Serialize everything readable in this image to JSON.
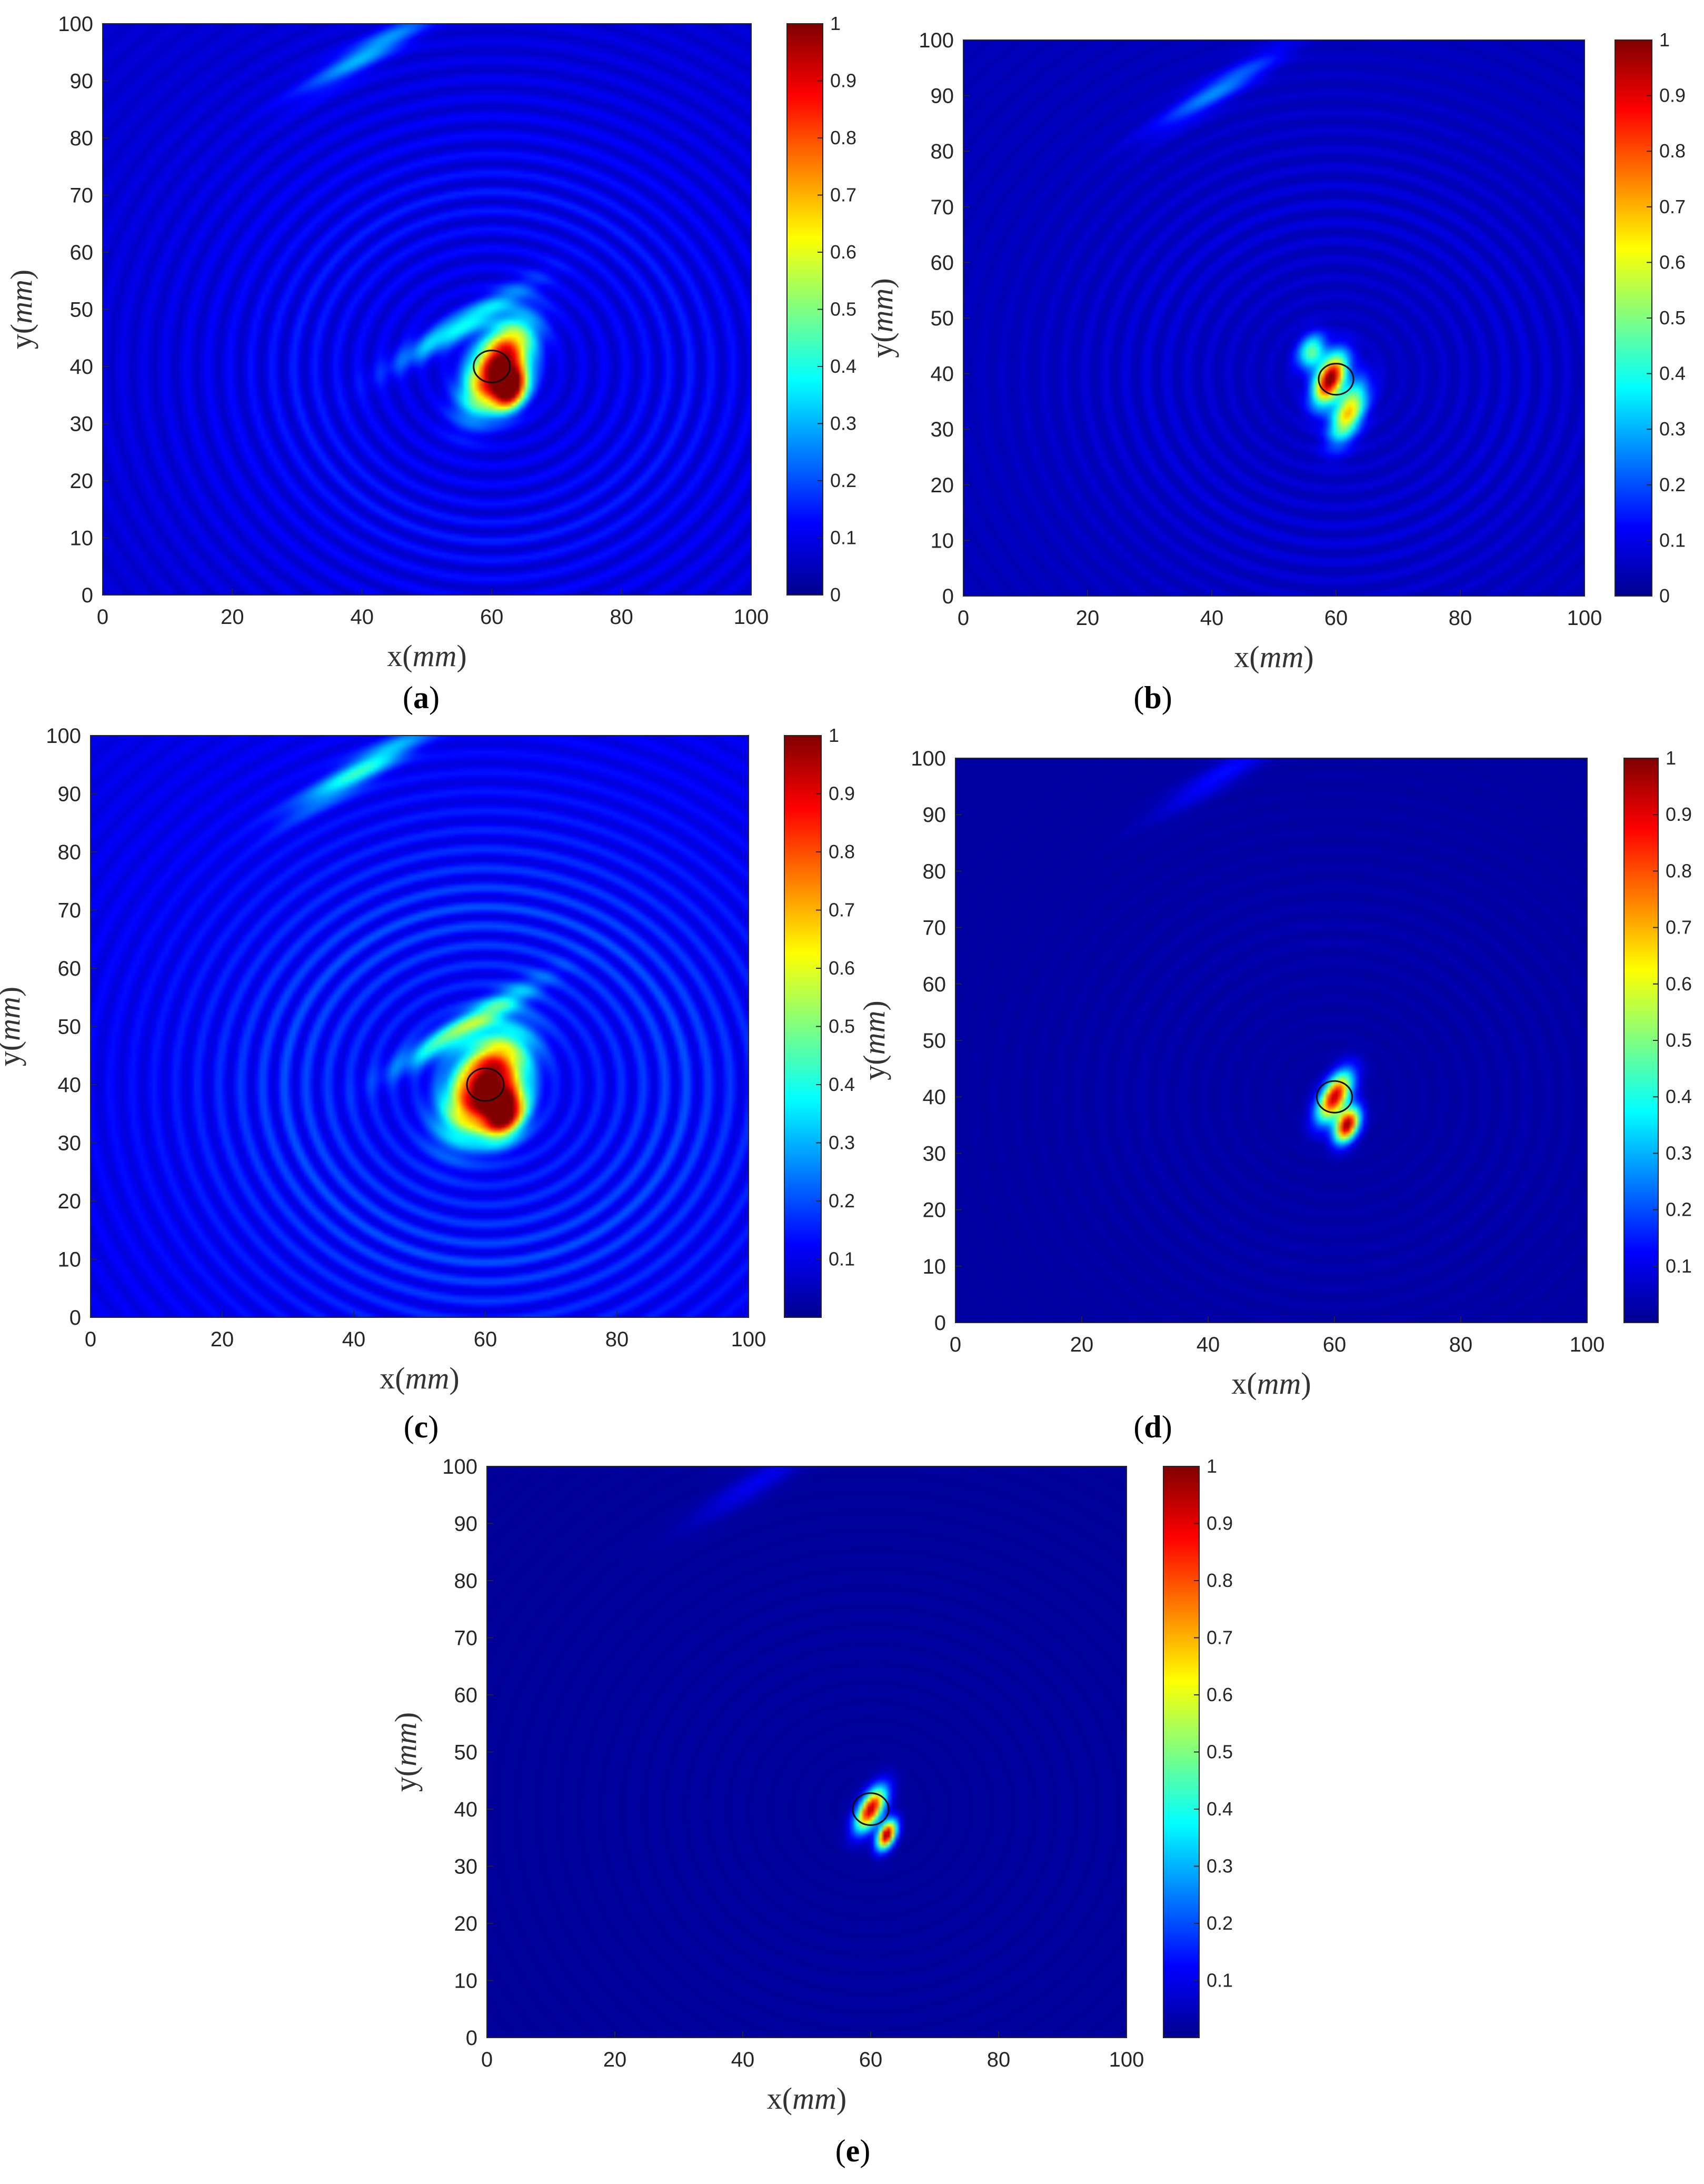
{
  "figure": {
    "panel_count": 5
  },
  "chart_data": [
    {
      "type": "heatmap",
      "panel": "a",
      "caption_letter": "a",
      "xlabel_main": "x",
      "xlabel_unit": "mm",
      "ylabel_main": "y",
      "ylabel_unit": "mm",
      "xlim": [
        0,
        100
      ],
      "ylim": [
        0,
        100
      ],
      "x_ticks": [
        "0",
        "20",
        "40",
        "60",
        "80",
        "100"
      ],
      "y_ticks": [
        "0",
        "10",
        "20",
        "30",
        "40",
        "50",
        "60",
        "70",
        "80",
        "90",
        "100"
      ],
      "colorbar_range": [
        0,
        1
      ],
      "colorbar_ticks": [
        "0",
        "0.1",
        "0.2",
        "0.3",
        "0.4",
        "0.5",
        "0.6",
        "0.7",
        "0.8",
        "0.9",
        "1"
      ],
      "colormap": "jet",
      "background_level": 0.07,
      "hotspots": [
        {
          "x": 61,
          "y": 40,
          "sx": 2.6,
          "sy": 5.5,
          "peak": 0.97,
          "angle": -25
        },
        {
          "x": 63,
          "y": 36,
          "sx": 1.6,
          "sy": 2.5,
          "peak": 0.86,
          "angle": -20
        }
      ],
      "artifacts": [
        {
          "x": 41,
          "y": 95,
          "peak": 0.22
        },
        {
          "x": 55,
          "y": 47,
          "peak": 0.3
        }
      ],
      "ring_strength": 0.09,
      "marker_circle": {
        "x": 60,
        "y": 40,
        "r": 2.8
      }
    },
    {
      "type": "heatmap",
      "panel": "b",
      "caption_letter": "b",
      "xlabel_main": "x",
      "xlabel_unit": "mm",
      "ylabel_main": "y",
      "ylabel_unit": "mm",
      "xlim": [
        0,
        100
      ],
      "ylim": [
        0,
        100
      ],
      "x_ticks": [
        "0",
        "20",
        "40",
        "60",
        "80",
        "100"
      ],
      "y_ticks": [
        "0",
        "10",
        "20",
        "30",
        "40",
        "50",
        "60",
        "70",
        "80",
        "90",
        "100"
      ],
      "colorbar_range": [
        0,
        1
      ],
      "colorbar_ticks": [
        "0",
        "0.1",
        "0.2",
        "0.3",
        "0.4",
        "0.5",
        "0.6",
        "0.7",
        "0.8",
        "0.9",
        "1"
      ],
      "colormap": "jet",
      "background_level": 0.05,
      "hotspots": [
        {
          "x": 59,
          "y": 39,
          "sx": 1.5,
          "sy": 3.2,
          "peak": 0.96,
          "angle": -20
        },
        {
          "x": 62,
          "y": 33,
          "sx": 1.6,
          "sy": 3.8,
          "peak": 0.62,
          "angle": -20
        },
        {
          "x": 56,
          "y": 44,
          "sx": 1.4,
          "sy": 2.2,
          "peak": 0.42,
          "angle": -20
        }
      ],
      "artifacts": [
        {
          "x": 41,
          "y": 91,
          "peak": 0.2
        }
      ],
      "ring_strength": 0.05,
      "marker_circle": {
        "x": 60,
        "y": 39,
        "r": 2.8
      }
    },
    {
      "type": "heatmap",
      "panel": "c",
      "caption_letter": "c",
      "xlabel_main": "x",
      "xlabel_unit": "mm",
      "ylabel_main": "y",
      "ylabel_unit": "mm",
      "xlim": [
        0,
        100
      ],
      "ylim": [
        0,
        100
      ],
      "x_ticks": [
        "0",
        "20",
        "40",
        "60",
        "80",
        "100"
      ],
      "y_ticks": [
        "0",
        "10",
        "20",
        "30",
        "40",
        "50",
        "60",
        "70",
        "80",
        "90",
        "100"
      ],
      "colorbar_range": [
        0,
        1
      ],
      "colorbar_ticks": [
        "0.1",
        "0.2",
        "0.3",
        "0.4",
        "0.5",
        "0.6",
        "0.7",
        "0.8",
        "0.9",
        "1"
      ],
      "colormap": "jet",
      "background_level": 0.09,
      "hotspots": [
        {
          "x": 60,
          "y": 40,
          "sx": 3.2,
          "sy": 6.0,
          "peak": 0.98,
          "angle": -25
        },
        {
          "x": 63,
          "y": 35,
          "sx": 2.0,
          "sy": 3.0,
          "peak": 0.85,
          "angle": -20
        }
      ],
      "artifacts": [
        {
          "x": 41,
          "y": 94,
          "peak": 0.3
        },
        {
          "x": 57,
          "y": 50,
          "peak": 0.38
        }
      ],
      "ring_strength": 0.12,
      "marker_circle": {
        "x": 60,
        "y": 40,
        "r": 2.8
      }
    },
    {
      "type": "heatmap",
      "panel": "d",
      "caption_letter": "d",
      "xlabel_main": "x",
      "xlabel_unit": "mm",
      "ylabel_main": "y",
      "ylabel_unit": "mm",
      "xlim": [
        0,
        100
      ],
      "ylim": [
        0,
        100
      ],
      "x_ticks": [
        "0",
        "20",
        "40",
        "60",
        "80",
        "100"
      ],
      "y_ticks": [
        "0",
        "10",
        "20",
        "30",
        "40",
        "50",
        "60",
        "70",
        "80",
        "90",
        "100"
      ],
      "colorbar_range": [
        0,
        1
      ],
      "colorbar_ticks": [
        "0.1",
        "0.2",
        "0.3",
        "0.4",
        "0.5",
        "0.6",
        "0.7",
        "0.8",
        "0.9",
        "1"
      ],
      "colormap": "jet",
      "background_level": 0.03,
      "hotspots": [
        {
          "x": 60,
          "y": 40,
          "sx": 1.4,
          "sy": 3.2,
          "peak": 0.9,
          "angle": -25
        },
        {
          "x": 62,
          "y": 35,
          "sx": 1.2,
          "sy": 2.2,
          "peak": 0.95,
          "angle": -20
        }
      ],
      "artifacts": [
        {
          "x": 42,
          "y": 97,
          "peak": 0.1
        }
      ],
      "ring_strength": 0.02,
      "marker_circle": {
        "x": 60,
        "y": 40,
        "r": 2.8
      }
    },
    {
      "type": "heatmap",
      "panel": "e",
      "caption_letter": "e",
      "xlabel_main": "x",
      "xlabel_unit": "mm",
      "ylabel_main": "y",
      "ylabel_unit": "mm",
      "xlim": [
        0,
        100
      ],
      "ylim": [
        0,
        100
      ],
      "x_ticks": [
        "0",
        "20",
        "40",
        "60",
        "80",
        "100"
      ],
      "y_ticks": [
        "0",
        "10",
        "20",
        "30",
        "40",
        "50",
        "60",
        "70",
        "80",
        "90",
        "100"
      ],
      "colorbar_range": [
        0,
        1
      ],
      "colorbar_ticks": [
        "0.1",
        "0.2",
        "0.3",
        "0.4",
        "0.5",
        "0.6",
        "0.7",
        "0.8",
        "0.9",
        "1"
      ],
      "colormap": "jet",
      "background_level": 0.025,
      "hotspots": [
        {
          "x": 60,
          "y": 40,
          "sx": 1.2,
          "sy": 2.8,
          "peak": 0.92,
          "angle": -25
        },
        {
          "x": 62.5,
          "y": 35.5,
          "sx": 0.9,
          "sy": 1.8,
          "peak": 0.97,
          "angle": -20
        }
      ],
      "artifacts": [
        {
          "x": 42,
          "y": 97,
          "peak": 0.08
        }
      ],
      "ring_strength": 0.01,
      "marker_circle": {
        "x": 60,
        "y": 40,
        "r": 2.8
      }
    }
  ]
}
